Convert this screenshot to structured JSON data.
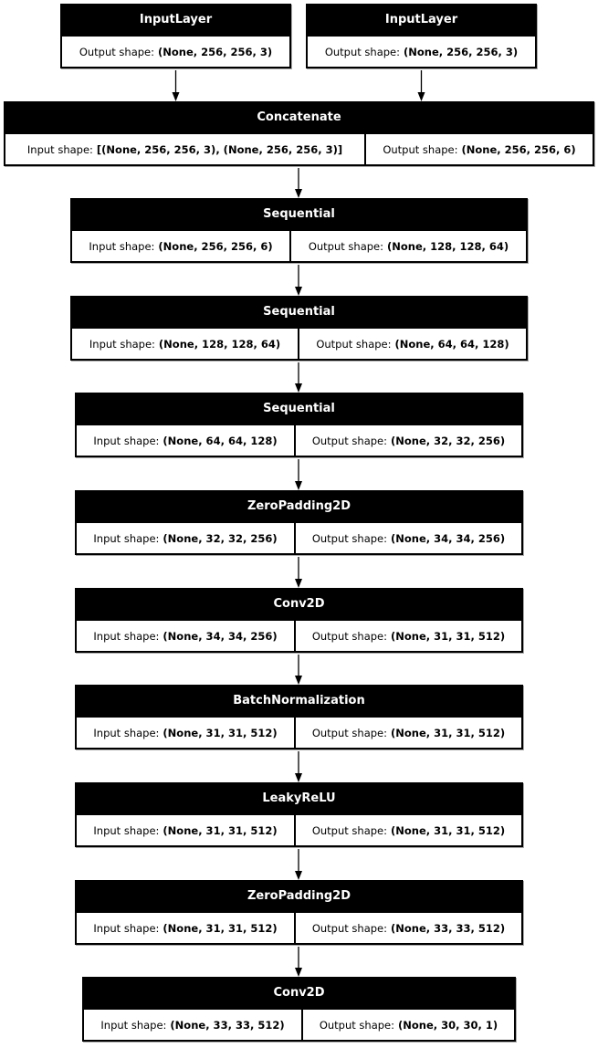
{
  "nodes": [
    {
      "title": "InputLayer",
      "cells": [
        {
          "label": "Output shape:",
          "value": "(None, 256, 256, 3)"
        }
      ]
    },
    {
      "title": "InputLayer",
      "cells": [
        {
          "label": "Output shape:",
          "value": "(None, 256, 256, 3)"
        }
      ]
    },
    {
      "title": "Concatenate",
      "cells": [
        {
          "label": "Input shape:",
          "value": "[(None, 256, 256, 3), (None, 256, 256, 3)]"
        },
        {
          "label": "Output shape:",
          "value": "(None, 256, 256, 6)"
        }
      ]
    },
    {
      "title": "Sequential",
      "cells": [
        {
          "label": "Input shape:",
          "value": "(None, 256, 256, 6)"
        },
        {
          "label": "Output shape:",
          "value": "(None, 128, 128, 64)"
        }
      ]
    },
    {
      "title": "Sequential",
      "cells": [
        {
          "label": "Input shape:",
          "value": "(None, 128, 128, 64)"
        },
        {
          "label": "Output shape:",
          "value": "(None, 64, 64, 128)"
        }
      ]
    },
    {
      "title": "Sequential",
      "cells": [
        {
          "label": "Input shape:",
          "value": "(None, 64, 64, 128)"
        },
        {
          "label": "Output shape:",
          "value": "(None, 32, 32, 256)"
        }
      ]
    },
    {
      "title": "ZeroPadding2D",
      "cells": [
        {
          "label": "Input shape:",
          "value": "(None, 32, 32, 256)"
        },
        {
          "label": "Output shape:",
          "value": "(None, 34, 34, 256)"
        }
      ]
    },
    {
      "title": "Conv2D",
      "cells": [
        {
          "label": "Input shape:",
          "value": "(None, 34, 34, 256)"
        },
        {
          "label": "Output shape:",
          "value": "(None, 31, 31, 512)"
        }
      ]
    },
    {
      "title": "BatchNormalization",
      "cells": [
        {
          "label": "Input shape:",
          "value": "(None, 31, 31, 512)"
        },
        {
          "label": "Output shape:",
          "value": "(None, 31, 31, 512)"
        }
      ]
    },
    {
      "title": "LeakyReLU",
      "cells": [
        {
          "label": "Input shape:",
          "value": "(None, 31, 31, 512)"
        },
        {
          "label": "Output shape:",
          "value": "(None, 31, 31, 512)"
        }
      ]
    },
    {
      "title": "ZeroPadding2D",
      "cells": [
        {
          "label": "Input shape:",
          "value": "(None, 31, 31, 512)"
        },
        {
          "label": "Output shape:",
          "value": "(None, 33, 33, 512)"
        }
      ]
    },
    {
      "title": "Conv2D",
      "cells": [
        {
          "label": "Input shape:",
          "value": "(None, 33, 33, 512)"
        },
        {
          "label": "Output shape:",
          "value": "(None, 30, 30, 1)"
        }
      ]
    }
  ],
  "edges": [
    [
      0,
      2
    ],
    [
      1,
      2
    ],
    [
      2,
      3
    ],
    [
      3,
      4
    ],
    [
      4,
      5
    ],
    [
      5,
      6
    ],
    [
      6,
      7
    ],
    [
      7,
      8
    ],
    [
      8,
      9
    ],
    [
      9,
      10
    ],
    [
      10,
      11
    ]
  ]
}
